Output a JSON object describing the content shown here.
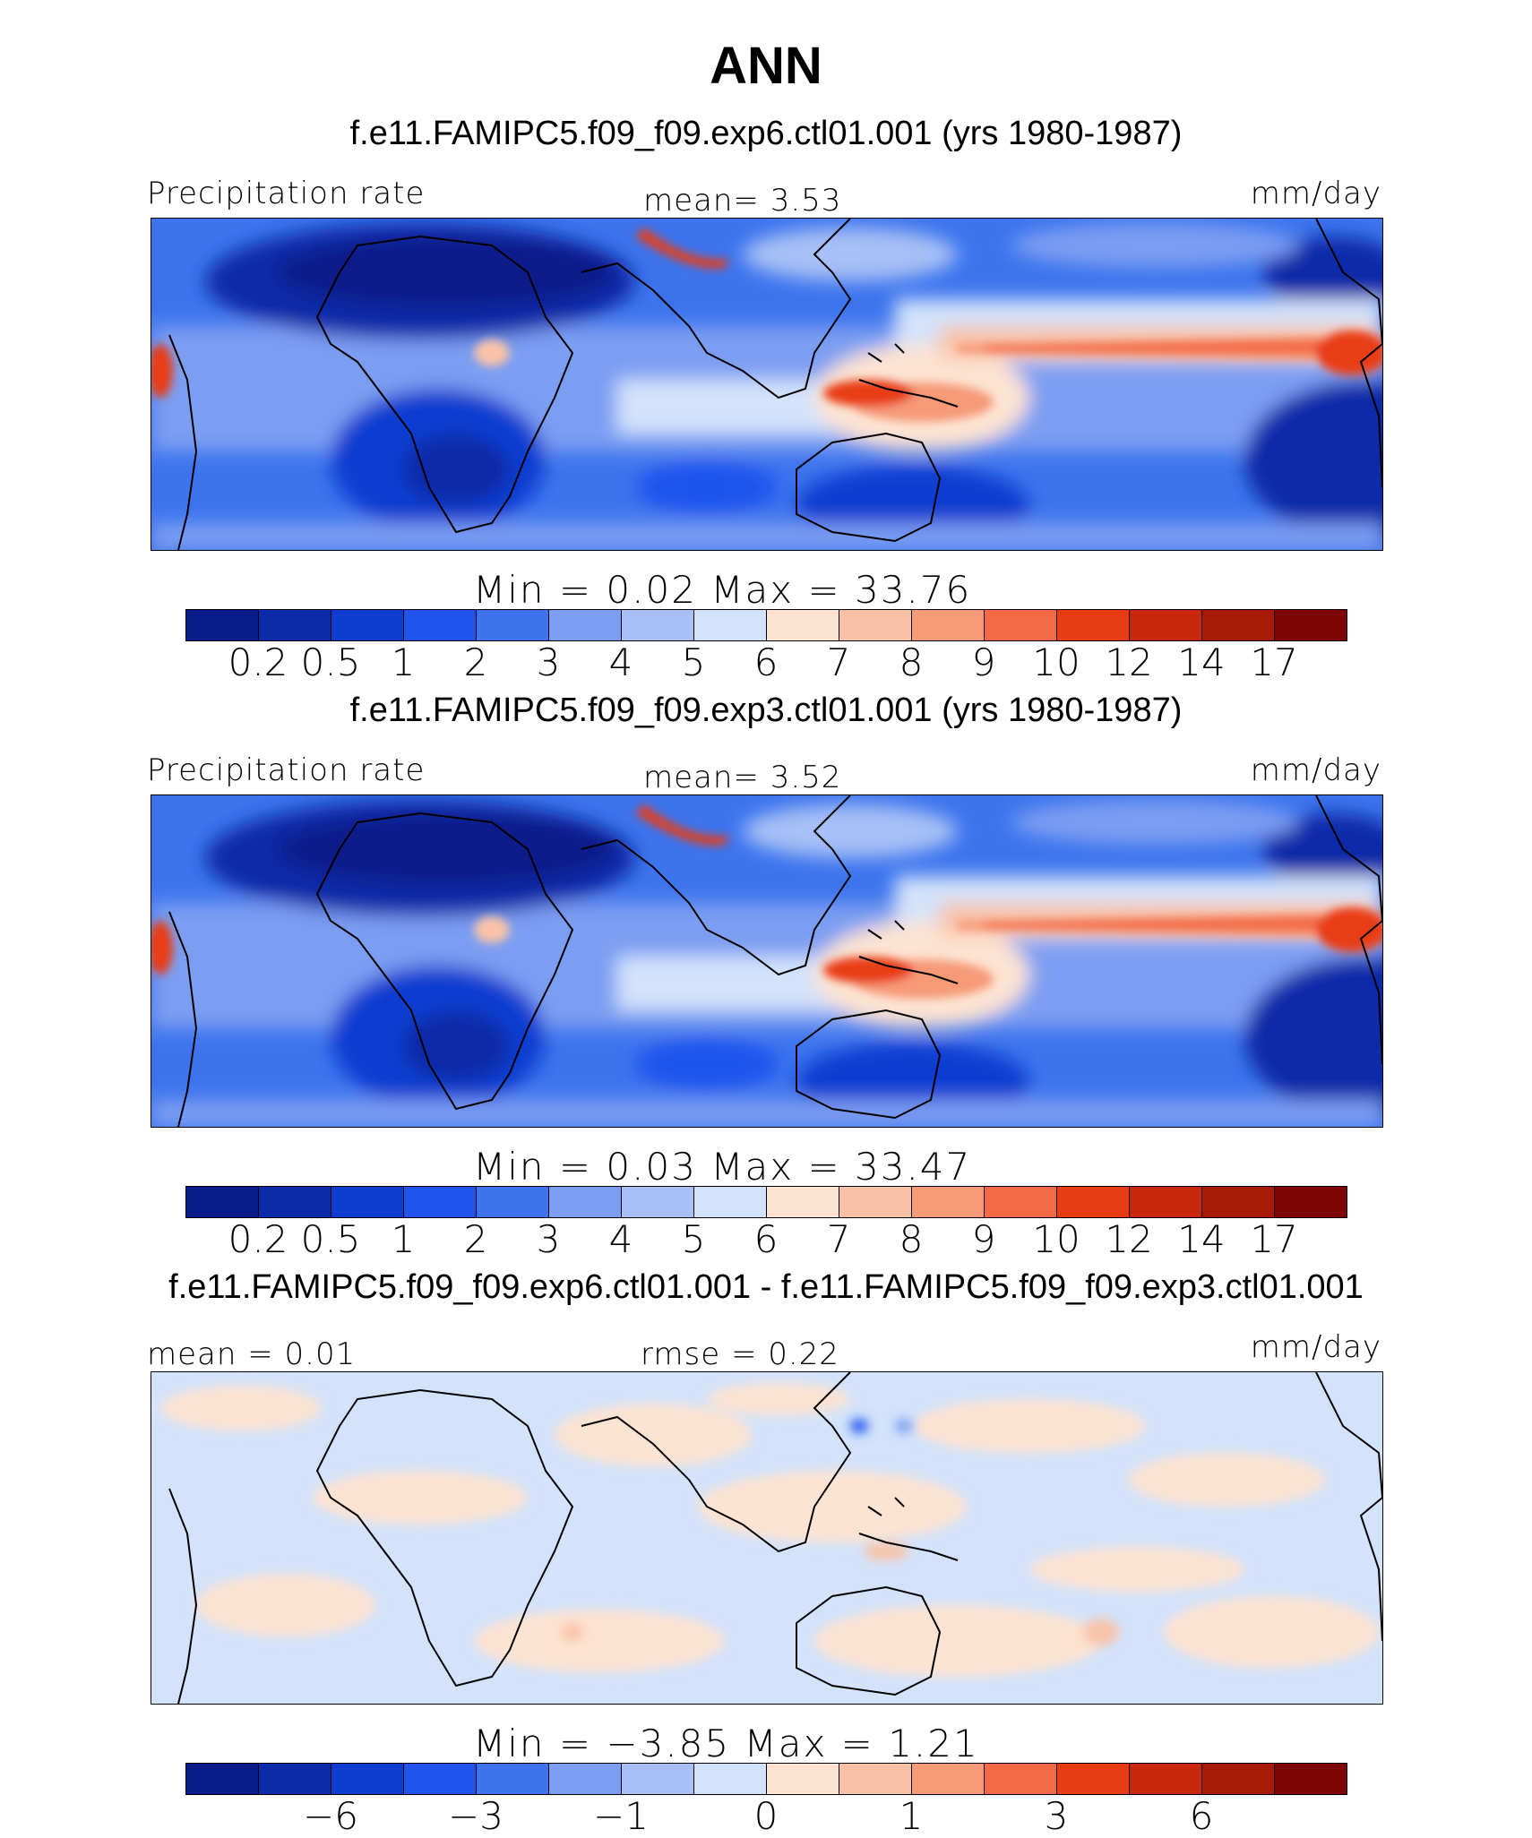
{
  "title": "ANN",
  "colors": {
    "scale": [
      "#0a1c8a",
      "#0b2ba8",
      "#0f3dd0",
      "#1f55ee",
      "#3d74ee",
      "#7c9ef2",
      "#a7c0f6",
      "#d3e3fb",
      "#fde3d2",
      "#f9c2a7",
      "#f69a78",
      "#f36a45",
      "#e83c15",
      "#c9280c",
      "#a81b08",
      "#7d0604"
    ],
    "land": "#000000"
  },
  "panels": [
    {
      "title": "f.e11.FAMIPC5.f09_f09.exp6.ctl01.001 (yrs 1980-1987)",
      "left_label": "Precipitation rate",
      "center_label": "mean=   3.53",
      "units": "mm/day",
      "minmax": "Min  =    0.02  Max  =    33.76",
      "ticks": [
        "0.2",
        "0.5",
        "1",
        "2",
        "3",
        "4",
        "5",
        "6",
        "7",
        "8",
        "9",
        "10",
        "12",
        "14",
        "17"
      ]
    },
    {
      "title": "f.e11.FAMIPC5.f09_f09.exp3.ctl01.001 (yrs 1980-1987)",
      "left_label": "Precipitation rate",
      "center_label": "mean=   3.52",
      "units": "mm/day",
      "minmax": "Min  =    0.03  Max  =    33.47",
      "ticks": [
        "0.2",
        "0.5",
        "1",
        "2",
        "3",
        "4",
        "5",
        "6",
        "7",
        "8",
        "9",
        "10",
        "12",
        "14",
        "17"
      ]
    },
    {
      "title": "f.e11.FAMIPC5.f09_f09.exp6.ctl01.001 - f.e11.FAMIPC5.f09_f09.exp3.ctl01.001",
      "left_label": "mean  =    0.01",
      "center_label": "rmse  =    0.22",
      "units": "mm/day",
      "minmax": "Min  =   −3.85  Max  =    1.21",
      "ticks": [
        "−6",
        "−3",
        "−1",
        "0",
        "1",
        "3",
        "6"
      ]
    }
  ]
}
